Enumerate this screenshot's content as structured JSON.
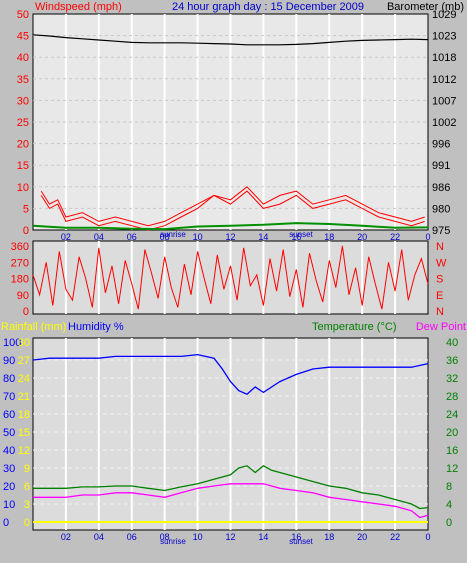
{
  "header": {
    "title": "24 hour graph day : 15 December 2009",
    "left_label": "Windspeed (mph)",
    "right_label": "Barometer (mb)"
  },
  "colors": {
    "background": "#c0c0c0",
    "panel_top": "#e8e8e8",
    "panel_bottom": "#dcdcdc",
    "wind": "#ff0000",
    "gust": "#ff0000",
    "wind_avg": "#0000c0",
    "wind_green": "#009000",
    "barometer": "#000000",
    "direction": "#ff0000",
    "humidity": "#0000ff",
    "temperature": "#008000",
    "dew_point": "#ff00ff",
    "rainfall": "#ffff00",
    "grid": "#ffffff"
  },
  "x_axis": {
    "ticks": [
      "02",
      "04",
      "06",
      "08",
      "10",
      "12",
      "14",
      "16",
      "18",
      "20",
      "22",
      "0"
    ],
    "sunrise": "sunrise",
    "sunset": "sunset"
  },
  "panel1": {
    "left_ticks": [
      "50",
      "45",
      "40",
      "35",
      "30",
      "25",
      "20",
      "15",
      "10",
      "5",
      "0"
    ],
    "right_ticks": [
      "1029",
      "1023",
      "1018",
      "1012",
      "1007",
      "1002",
      "996",
      "991",
      "986",
      "980",
      "975"
    ]
  },
  "panel2": {
    "left_ticks": [
      "360",
      "270",
      "180",
      "90",
      "0"
    ],
    "compass": [
      "N",
      "W",
      "S",
      "E",
      "N"
    ]
  },
  "panel3": {
    "label_rain": "Rainfall (mm)",
    "label_humidity": "Humidity %",
    "label_temp": "Temperature (°C)",
    "label_dew": "Dew Point",
    "humidity_ticks": [
      "100",
      "90",
      "80",
      "70",
      "60",
      "50",
      "40",
      "30",
      "20",
      "10",
      "0"
    ],
    "rain_ticks": [
      "30",
      "27",
      "24",
      "21",
      "18",
      "15",
      "12",
      "9",
      "6",
      "3",
      "0"
    ],
    "temp_ticks": [
      "40",
      "36",
      "32",
      "28",
      "24",
      "20",
      "16",
      "12",
      "8",
      "4",
      "0"
    ]
  },
  "chart_data": [
    {
      "type": "line",
      "title": "24 hour graph day : 15 December 2009",
      "ylabel": "Windspeed (mph)",
      "y2label": "Barometer (mb)",
      "ylim": [
        0,
        50
      ],
      "y2lim": [
        975,
        1029
      ],
      "x_hours": [
        0,
        24
      ],
      "series": [
        {
          "name": "Windspeed (mph)",
          "axis": "left",
          "x": [
            0.5,
            1,
            1.5,
            2,
            3,
            4,
            5,
            6,
            7,
            8,
            9,
            10,
            11,
            12,
            13,
            14,
            15,
            16,
            17,
            18,
            19,
            20,
            21,
            22,
            23,
            23.8
          ],
          "values": [
            8,
            5,
            6,
            2,
            3,
            1,
            2,
            1,
            0,
            1,
            3,
            5,
            8,
            6,
            9,
            5,
            6,
            8,
            5,
            6,
            7,
            5,
            3,
            2,
            1,
            2
          ]
        },
        {
          "name": "Gust",
          "axis": "left",
          "x": [
            0.5,
            1,
            1.5,
            2,
            3,
            4,
            5,
            6,
            7,
            8,
            9,
            10,
            11,
            12,
            13,
            14,
            15,
            16,
            17,
            18,
            19,
            20,
            21,
            22,
            23,
            23.8
          ],
          "values": [
            9,
            6,
            7,
            3,
            4,
            2,
            3,
            2,
            1,
            2,
            4,
            6,
            8,
            7,
            10,
            6,
            8,
            9,
            6,
            7,
            8,
            6,
            4,
            3,
            2,
            3
          ]
        },
        {
          "name": "Average",
          "axis": "left",
          "x": [
            0,
            2,
            4,
            6,
            8,
            10,
            12,
            14,
            16,
            18,
            20,
            22,
            24
          ],
          "values": [
            1,
            0.5,
            0.5,
            0.3,
            0.2,
            0.8,
            1,
            1.2,
            1.6,
            1.4,
            1,
            0.5,
            0.6
          ]
        },
        {
          "name": "Barometer (mb)",
          "axis": "right",
          "x": [
            0,
            1,
            2,
            3,
            4,
            5,
            6,
            7,
            8,
            9,
            10,
            11,
            12,
            13,
            14,
            15,
            16,
            17,
            18,
            19,
            20,
            21,
            22,
            23,
            24
          ],
          "values": [
            1023.8,
            1023.5,
            1023.1,
            1022.8,
            1022.5,
            1022.2,
            1021.9,
            1021.8,
            1021.8,
            1021.8,
            1021.7,
            1021.6,
            1021.5,
            1021.3,
            1021.3,
            1021.3,
            1021.4,
            1021.6,
            1021.9,
            1022.2,
            1022.4,
            1022.5,
            1022.6,
            1022.7,
            1022.6
          ]
        }
      ]
    },
    {
      "type": "line",
      "ylabel": "Wind direction",
      "ylim": [
        0,
        360
      ],
      "x_hours": [
        0,
        24
      ],
      "series": [
        {
          "name": "Direction",
          "x": [
            0,
            0.4,
            0.8,
            1.2,
            1.6,
            2,
            2.4,
            2.8,
            3.2,
            3.6,
            4,
            4.4,
            4.8,
            5.2,
            5.6,
            6,
            6.4,
            6.8,
            7.2,
            7.6,
            8,
            8.4,
            8.8,
            9.2,
            9.6,
            10,
            10.4,
            10.8,
            11.2,
            11.6,
            12,
            12.4,
            12.8,
            13.2,
            13.6,
            14,
            14.4,
            14.8,
            15.2,
            15.6,
            16,
            16.4,
            16.8,
            17.2,
            17.6,
            18,
            18.4,
            18.8,
            19.2,
            19.6,
            20,
            20.4,
            20.8,
            21.2,
            21.6,
            22,
            22.4,
            22.8,
            23.2,
            23.6,
            24
          ],
          "values": [
            200,
            90,
            270,
            30,
            330,
            120,
            60,
            300,
            180,
            20,
            350,
            100,
            250,
            40,
            280,
            150,
            10,
            340,
            210,
            70,
            300,
            130,
            20,
            260,
            90,
            330,
            180,
            40,
            310,
            120,
            250,
            60,
            350,
            140,
            200,
            30,
            290,
            110,
            340,
            80,
            230,
            20,
            320,
            170,
            50,
            280,
            130,
            360,
            90,
            240,
            30,
            300,
            150,
            10,
            270,
            110,
            340,
            60,
            200,
            290,
            150
          ]
        }
      ]
    },
    {
      "type": "line",
      "x_hours": [
        0,
        24
      ],
      "ylabel": "Humidity %",
      "ylim": [
        0,
        100
      ],
      "y2label": "Temperature (°C)",
      "y2lim": [
        0,
        40
      ],
      "y3label": "Rainfall (mm)",
      "y3lim": [
        0,
        30
      ],
      "series": [
        {
          "name": "Humidity %",
          "axis": "humidity",
          "x": [
            0,
            1,
            2,
            3,
            4,
            5,
            6,
            7,
            8,
            9,
            10,
            11,
            11.5,
            12,
            12.5,
            13,
            13.5,
            14,
            14.5,
            15,
            16,
            17,
            18,
            19,
            20,
            21,
            22,
            23,
            24
          ],
          "values": [
            90,
            91,
            91,
            91,
            91,
            92,
            92,
            92,
            92,
            92,
            93,
            91,
            85,
            78,
            73,
            71,
            75,
            72,
            75,
            78,
            82,
            85,
            86,
            86,
            86,
            86,
            86,
            86,
            88
          ]
        },
        {
          "name": "Temperature (°C)",
          "axis": "temp",
          "x": [
            0,
            1,
            2,
            3,
            4,
            5,
            6,
            7,
            8,
            9,
            10,
            11,
            12,
            12.5,
            13,
            13.5,
            14,
            14.5,
            15,
            16,
            17,
            18,
            19,
            20,
            21,
            22,
            23,
            23.5,
            24
          ],
          "values": [
            7.5,
            7.5,
            7.5,
            7.8,
            7.8,
            8,
            8,
            7.5,
            7,
            7.8,
            8.5,
            9.5,
            10.5,
            12,
            12.5,
            11,
            12.5,
            11.5,
            11,
            10,
            9,
            8,
            7.5,
            6.5,
            6,
            5,
            4,
            3,
            3.2
          ]
        },
        {
          "name": "Dew Point",
          "axis": "temp",
          "x": [
            0,
            1,
            2,
            3,
            4,
            5,
            6,
            7,
            8,
            9,
            10,
            11,
            12,
            13,
            14,
            14.5,
            15,
            16,
            17,
            18,
            19,
            20,
            21,
            22,
            23,
            23.5,
            24
          ],
          "values": [
            5.5,
            5.5,
            5.5,
            6,
            6,
            6.5,
            6.5,
            6,
            5.5,
            6.5,
            7.5,
            8,
            8.5,
            8.5,
            8.5,
            8,
            7.5,
            7,
            6.5,
            5.5,
            5,
            4.5,
            4,
            3.5,
            2.5,
            1,
            1.5
          ]
        },
        {
          "name": "Rainfall (mm)",
          "axis": "rain",
          "x": [
            0,
            24
          ],
          "values": [
            0,
            0
          ]
        }
      ]
    }
  ]
}
